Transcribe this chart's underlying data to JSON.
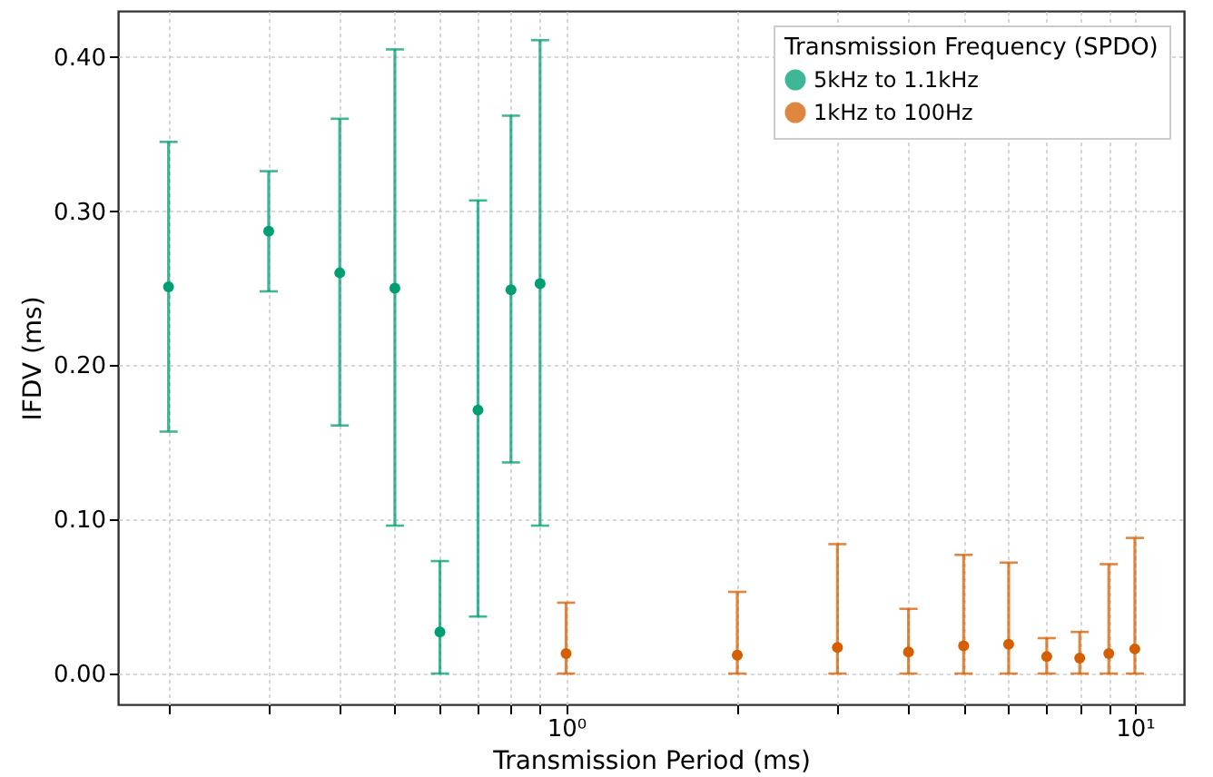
{
  "chart_data": {
    "type": "scatter",
    "xlabel": "Transmission Period (ms)",
    "ylabel": "IFDV (ms)",
    "legend_title": "Transmission Frequency (SPDO)",
    "log": "x",
    "grid": true,
    "legend": "top right",
    "marker": "circle",
    "xlim": [
      0.163,
      12.2
    ],
    "ylim": [
      -0.02,
      0.43
    ],
    "xticks": [
      {
        "value": 0.2,
        "label": null
      },
      {
        "value": 0.3,
        "label": null
      },
      {
        "value": 0.4,
        "label": null
      },
      {
        "value": 0.5,
        "label": null
      },
      {
        "value": 0.6,
        "label": null
      },
      {
        "value": 0.7,
        "label": null
      },
      {
        "value": 0.8,
        "label": null
      },
      {
        "value": 0.9,
        "label": null
      },
      {
        "value": 1,
        "label": "10⁰"
      },
      {
        "value": 2,
        "label": null
      },
      {
        "value": 3,
        "label": null
      },
      {
        "value": 4,
        "label": null
      },
      {
        "value": 5,
        "label": null
      },
      {
        "value": 6,
        "label": null
      },
      {
        "value": 7,
        "label": null
      },
      {
        "value": 8,
        "label": null
      },
      {
        "value": 9,
        "label": null
      },
      {
        "value": 10,
        "label": "10¹"
      }
    ],
    "yticks": [
      {
        "value": 0,
        "label": "0.00"
      },
      {
        "value": 0.1,
        "label": "0.10"
      },
      {
        "value": 0.2,
        "label": "0.20"
      },
      {
        "value": 0.3,
        "label": "0.30"
      },
      {
        "value": 0.4,
        "label": "0.40"
      }
    ],
    "series": [
      {
        "name": "5kHz to 1.1kHz",
        "color": "#009e73",
        "x": [
          0.2,
          0.3,
          0.4,
          0.5,
          0.6,
          0.7,
          0.8,
          0.9
        ],
        "values": [
          0.251,
          0.287,
          0.26,
          0.25,
          0.027,
          0.171,
          0.249,
          0.253
        ],
        "errors": [
          [
            0.157,
            0.345
          ],
          [
            0.248,
            0.326
          ],
          [
            0.161,
            0.36
          ],
          [
            0.096,
            0.405
          ],
          [
            0,
            0.073
          ],
          [
            0.037,
            0.307
          ],
          [
            0.137,
            0.362
          ],
          [
            0.096,
            0.411
          ]
        ]
      },
      {
        "name": "1kHz to 100Hz",
        "color": "#d55e00",
        "x": [
          1,
          2,
          3,
          4,
          5,
          6,
          7,
          8,
          9,
          10
        ],
        "values": [
          0.013,
          0.012,
          0.017,
          0.014,
          0.018,
          0.019,
          0.011,
          0.01,
          0.013,
          0.016
        ],
        "errors": [
          [
            0,
            0.046
          ],
          [
            0,
            0.053
          ],
          [
            0,
            0.084
          ],
          [
            0,
            0.042
          ],
          [
            0,
            0.077
          ],
          [
            0,
            0.072
          ],
          [
            0,
            0.023
          ],
          [
            0,
            0.027
          ],
          [
            0,
            0.071
          ],
          [
            0,
            0.088
          ]
        ]
      }
    ]
  }
}
